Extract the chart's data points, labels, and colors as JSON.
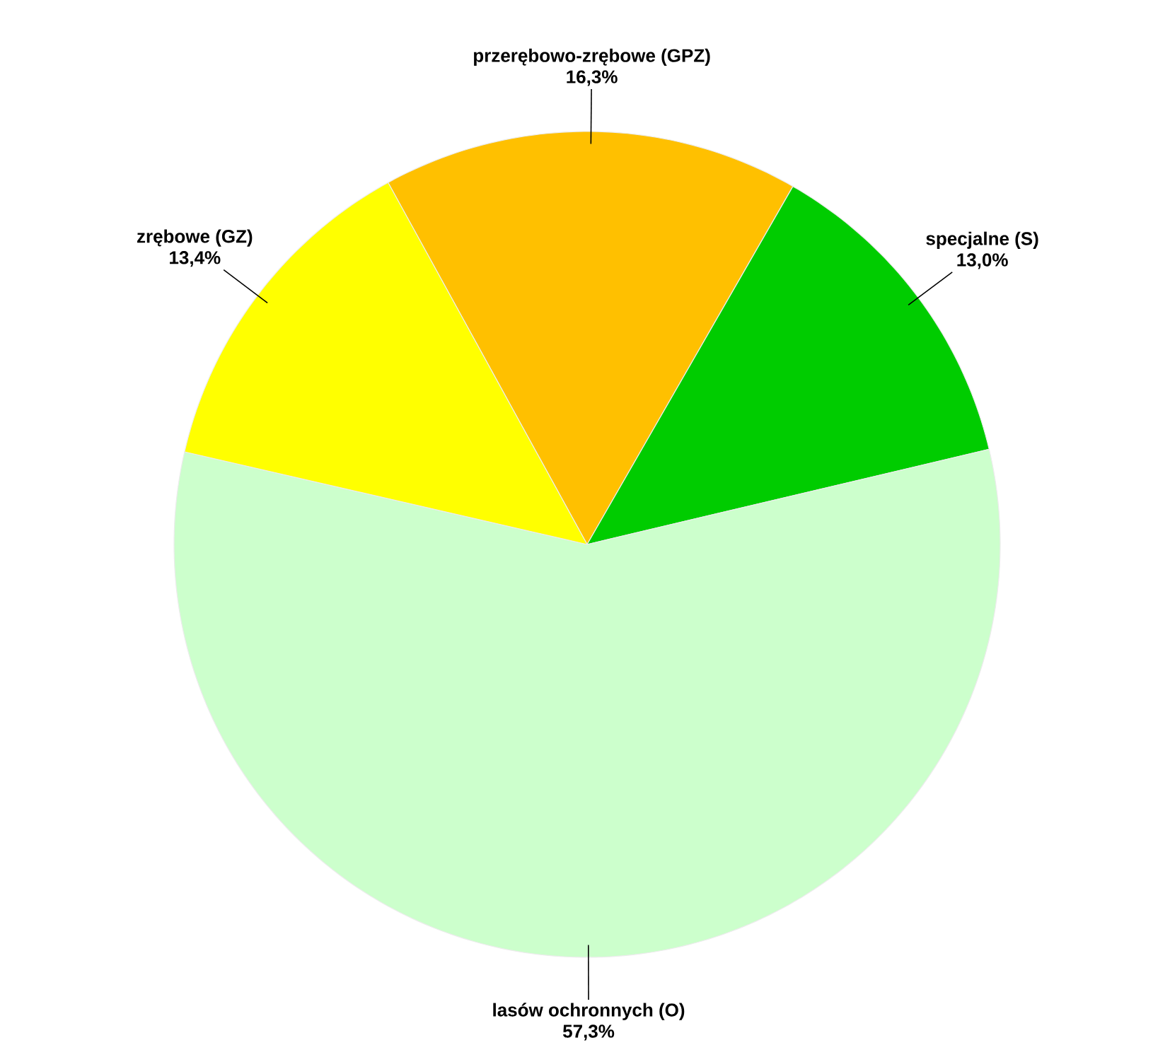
{
  "chart_data": {
    "type": "pie",
    "categories": [
      "przerębowo-zrębowe (GPZ)",
      "specjalne (S)",
      "lasów ochronnych (O)",
      "zrębowe (GZ)"
    ],
    "values": [
      16.3,
      13.0,
      57.3,
      13.4
    ],
    "value_labels": [
      "16,3%",
      "13,0%",
      "57,3%",
      "13,4%"
    ],
    "colors": [
      "#ffc000",
      "#00cc00",
      "#ccffcc",
      "#ffff00"
    ]
  }
}
